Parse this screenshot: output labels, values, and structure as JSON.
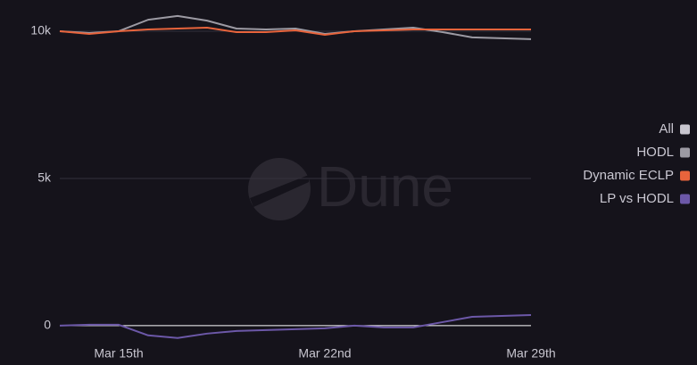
{
  "chart_data": {
    "type": "line",
    "watermark": "Dune",
    "x": [
      13,
      14,
      15,
      16,
      17,
      18,
      19,
      20,
      21,
      22,
      23,
      24,
      25,
      26,
      27,
      28,
      29
    ],
    "xlim": [
      13,
      29
    ],
    "xticks": [
      {
        "value": 15,
        "label": "Mar 15th"
      },
      {
        "value": 22,
        "label": "Mar 22nd"
      },
      {
        "value": 29,
        "label": "Mar 29th"
      }
    ],
    "ylim": [
      -700,
      11000
    ],
    "yticks": [
      0,
      {
        "value": 5000,
        "label": "5k"
      },
      {
        "value": 10000,
        "label": "10k"
      }
    ],
    "grid": true,
    "legend_position": "right",
    "legend_all": {
      "name": "All",
      "color": "#c8c6cf"
    },
    "series": [
      {
        "name": "HODL",
        "color": "#9c9aa3",
        "values": [
          10000,
          9940,
          10000,
          10390,
          10520,
          10360,
          10090,
          10060,
          10090,
          9910,
          10000,
          10060,
          10120,
          9970,
          9790,
          9760,
          9730
        ]
      },
      {
        "name": "Dynamic ECLP",
        "color": "#e8643c",
        "values": [
          10000,
          9910,
          10000,
          10060,
          10090,
          10120,
          9970,
          9970,
          10030,
          9880,
          10000,
          10030,
          10060,
          10060,
          10060,
          10060,
          10060
        ]
      },
      {
        "name": "LP vs HODL",
        "color": "#6c58a8",
        "values": [
          0,
          30,
          30,
          -330,
          -420,
          -270,
          -180,
          -150,
          -120,
          -90,
          0,
          -60,
          -60,
          120,
          300,
          330,
          360
        ]
      }
    ]
  }
}
